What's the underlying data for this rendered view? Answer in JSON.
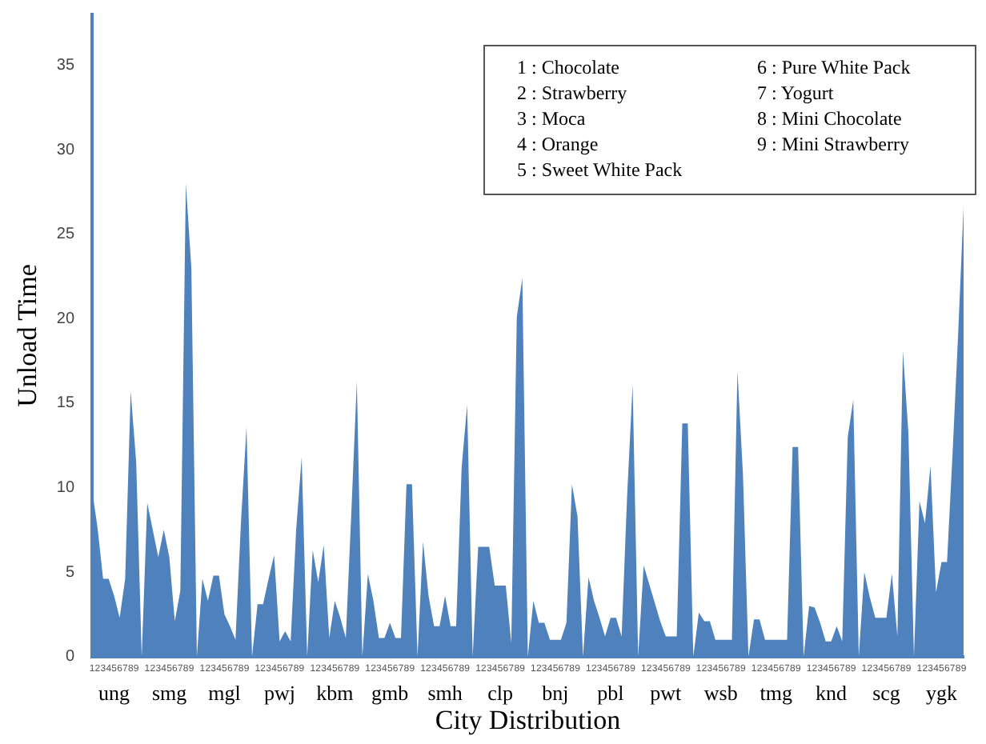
{
  "chart_data": {
    "type": "area",
    "xlabel": "City Distribution",
    "ylabel": "Unload Time",
    "categories": [
      "1",
      "2",
      "3",
      "4",
      "5",
      "6",
      "7",
      "8",
      "9",
      null,
      "1",
      "2",
      "3",
      "4",
      "5",
      "6",
      "7",
      "8",
      "9",
      null,
      "1",
      "2",
      "3",
      "4",
      "5",
      "6",
      "7",
      "8",
      "9",
      null,
      "1",
      "2",
      "3",
      "4",
      "5",
      "6",
      "7",
      "8",
      "9",
      null,
      "1",
      "2",
      "3",
      "4",
      "5",
      "6",
      "7",
      "8",
      "9",
      null,
      "1",
      "2",
      "3",
      "4",
      "5",
      "6",
      "7",
      "8",
      "9",
      null,
      "1",
      "2",
      "3",
      "4",
      "5",
      "6",
      "7",
      "8",
      "9",
      null,
      "1",
      "2",
      "3",
      "4",
      "5",
      "6",
      "7",
      "8",
      "9",
      null,
      "1",
      "2",
      "3",
      "4",
      "5",
      "6",
      "7",
      "8",
      "9",
      null,
      "1",
      "2",
      "3",
      "4",
      "5",
      "6",
      "7",
      "8",
      "9",
      null,
      "1",
      "2",
      "3",
      "4",
      "5",
      "6",
      "7",
      "8",
      "9",
      null,
      "1",
      "2",
      "3",
      "4",
      "5",
      "6",
      "7",
      "8",
      "9",
      null,
      "1",
      "2",
      "3",
      "4",
      "5",
      "6",
      "7",
      "8",
      "9",
      null,
      "1",
      "2",
      "3",
      "4",
      "5",
      "6",
      "7",
      "8",
      "9",
      null,
      "1",
      "2",
      "3",
      "4",
      "5",
      "6",
      "7",
      "8",
      "9",
      null,
      "1",
      "2",
      "3",
      "4",
      "5",
      "6",
      "7",
      "8",
      "9"
    ],
    "series": [
      {
        "color": "#4f81bd",
        "values": [
          9.9,
          7.6,
          4.6,
          4.6,
          3.6,
          2.3,
          4.6,
          15.7,
          11.5,
          0,
          9.1,
          7.5,
          5.9,
          7.5,
          5.9,
          2.1,
          3.9,
          28,
          23,
          0,
          4.6,
          3.3,
          4.8,
          4.8,
          2.5,
          1.8,
          1.0,
          8,
          13.6,
          0,
          3.1,
          3.1,
          4.6,
          6.0,
          0.9,
          1.5,
          0.9,
          7.5,
          11.8,
          0,
          6.3,
          4.4,
          6.6,
          1.1,
          3.3,
          2.3,
          1.1,
          8.5,
          16.3,
          0,
          4.9,
          3.3,
          1.1,
          1.1,
          2.0,
          1.1,
          1.1,
          10.2,
          10.2,
          0,
          6.8,
          3.6,
          1.8,
          1.8,
          3.6,
          1.8,
          1.8,
          11.2,
          14.9,
          0,
          6.5,
          6.5,
          6.5,
          4.2,
          4.2,
          4.2,
          0.8,
          20.1,
          22.4,
          0,
          3.3,
          2.0,
          2.0,
          1.0,
          1.0,
          1.0,
          2.0,
          10.2,
          8.3,
          0,
          4.7,
          3.3,
          2.3,
          1.2,
          2.3,
          2.3,
          1.2,
          9.5,
          16.1,
          0,
          5.4,
          4.3,
          3.2,
          2.1,
          1.2,
          1.2,
          1.2,
          13.8,
          13.8,
          0,
          2.6,
          2.1,
          2.1,
          1.0,
          1.0,
          1.0,
          1.0,
          16.9,
          10.8,
          0,
          2.2,
          2.2,
          1.0,
          1.0,
          1.0,
          1.0,
          1.0,
          12.4,
          12.4,
          0,
          3.0,
          2.9,
          2.0,
          0.9,
          0.9,
          1.8,
          0.9,
          13.0,
          15.2,
          0,
          5.0,
          3.5,
          2.3,
          2.3,
          2.3,
          4.9,
          1.2,
          18.1,
          13.2,
          0,
          9.2,
          7.9,
          11.3,
          3.8,
          5.6,
          5.6,
          12,
          19,
          26.6
        ]
      }
    ],
    "ylim": [
      0,
      38
    ],
    "yticks": [
      0,
      5,
      10,
      15,
      20,
      25,
      30,
      35
    ],
    "grid": false,
    "legend": false,
    "annotations": [
      "ung",
      "smg",
      "mgl",
      "pwj",
      "kbm",
      "gmb",
      "smh",
      "clp",
      "bnj",
      "pbl",
      "pwt",
      "wsb",
      "tmg",
      "knd",
      "scg",
      "ygk",
      "1 : Chocolate",
      "2 : Strawberry",
      "3 : Moca",
      "4 : Orange",
      "5 : Sweet White Pack",
      "6 : Pure White Pack",
      "7 : Yogurt",
      "8 : Mini Chocolate",
      "9 : Mini Strawberry"
    ]
  }
}
